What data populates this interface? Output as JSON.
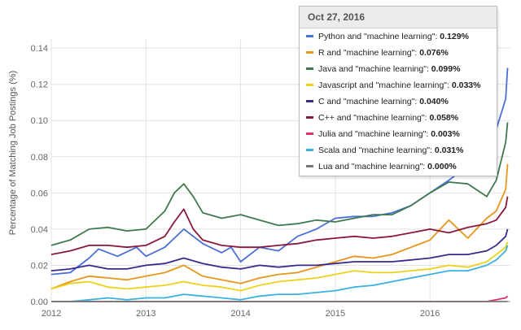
{
  "tooltip": {
    "date": "Oct 27, 2016",
    "rows": [
      {
        "label": "Python and \"machine learning\":",
        "value": "0.129%",
        "color": "#4a6fd8"
      },
      {
        "label": "R and \"machine learning\":",
        "value": "0.076%",
        "color": "#e8961c"
      },
      {
        "label": "Java and \"machine learning\":",
        "value": "0.099%",
        "color": "#3f7a4e"
      },
      {
        "label": "Javascript and \"machine learning\":",
        "value": "0.033%",
        "color": "#ecd21a"
      },
      {
        "label": "C and \"machine learning\":",
        "value": "0.040%",
        "color": "#3a2a8a"
      },
      {
        "label": "C++ and \"machine learning\":",
        "value": "0.058%",
        "color": "#8a1838"
      },
      {
        "label": "Julia and \"machine learning\":",
        "value": "0.003%",
        "color": "#e0306a"
      },
      {
        "label": "Scala and \"machine learning\":",
        "value": "0.031%",
        "color": "#3bb1e0"
      },
      {
        "label": "Lua and \"machine learning\":",
        "value": "0.000%",
        "color": "#777777"
      }
    ]
  },
  "chart_data": {
    "type": "line",
    "title": "",
    "xlabel": "",
    "ylabel": "Percentage of Matching Job Postings (%)",
    "x_ticks": [
      "2012",
      "2013",
      "2014",
      "2015",
      "2016"
    ],
    "y_ticks": [
      "0.00",
      "0.02",
      "0.04",
      "0.06",
      "0.08",
      "0.10",
      "0.12",
      "0.14"
    ],
    "ylim": [
      0,
      0.145
    ],
    "xlim": [
      2012.0,
      2016.85
    ],
    "grid": true,
    "series": [
      {
        "name": "Python and \"machine learning\"",
        "color": "#4a6fd8",
        "x": [
          2012.0,
          2012.2,
          2012.4,
          2012.5,
          2012.7,
          2012.9,
          2013.0,
          2013.2,
          2013.4,
          2013.6,
          2013.8,
          2013.9,
          2014.0,
          2014.2,
          2014.4,
          2014.6,
          2014.8,
          2015.0,
          2015.2,
          2015.4,
          2015.6,
          2015.8,
          2016.0,
          2016.2,
          2016.3,
          2016.5,
          2016.6,
          2016.7,
          2016.8,
          2016.82
        ],
        "values": [
          0.015,
          0.016,
          0.024,
          0.029,
          0.025,
          0.03,
          0.025,
          0.03,
          0.04,
          0.032,
          0.027,
          0.03,
          0.022,
          0.03,
          0.028,
          0.036,
          0.04,
          0.046,
          0.047,
          0.047,
          0.049,
          0.053,
          0.06,
          0.067,
          0.071,
          0.075,
          0.088,
          0.095,
          0.112,
          0.129
        ]
      },
      {
        "name": "R and \"machine learning\"",
        "color": "#e8961c",
        "x": [
          2012.0,
          2012.2,
          2012.4,
          2012.6,
          2012.8,
          2013.0,
          2013.2,
          2013.4,
          2013.6,
          2013.8,
          2014.0,
          2014.2,
          2014.4,
          2014.6,
          2014.8,
          2015.0,
          2015.2,
          2015.4,
          2015.6,
          2015.8,
          2016.0,
          2016.2,
          2016.4,
          2016.6,
          2016.7,
          2016.8,
          2016.82
        ],
        "values": [
          0.007,
          0.011,
          0.014,
          0.013,
          0.012,
          0.014,
          0.016,
          0.02,
          0.014,
          0.012,
          0.01,
          0.013,
          0.015,
          0.016,
          0.019,
          0.022,
          0.025,
          0.024,
          0.026,
          0.03,
          0.034,
          0.045,
          0.035,
          0.046,
          0.05,
          0.062,
          0.076
        ]
      },
      {
        "name": "Java and \"machine learning\"",
        "color": "#3f7a4e",
        "x": [
          2012.0,
          2012.2,
          2012.4,
          2012.6,
          2012.8,
          2013.0,
          2013.2,
          2013.3,
          2013.4,
          2013.5,
          2013.6,
          2013.8,
          2014.0,
          2014.2,
          2014.4,
          2014.6,
          2014.8,
          2015.0,
          2015.2,
          2015.4,
          2015.6,
          2015.8,
          2016.0,
          2016.2,
          2016.4,
          2016.6,
          2016.7,
          2016.8,
          2016.82
        ],
        "values": [
          0.031,
          0.034,
          0.04,
          0.041,
          0.039,
          0.04,
          0.05,
          0.06,
          0.065,
          0.058,
          0.049,
          0.046,
          0.048,
          0.045,
          0.042,
          0.043,
          0.045,
          0.044,
          0.046,
          0.048,
          0.048,
          0.053,
          0.06,
          0.066,
          0.065,
          0.058,
          0.067,
          0.088,
          0.099
        ]
      },
      {
        "name": "Javascript and \"machine learning\"",
        "color": "#ecd21a",
        "x": [
          2012.0,
          2012.2,
          2012.4,
          2012.6,
          2012.8,
          2013.0,
          2013.2,
          2013.4,
          2013.6,
          2013.8,
          2014.0,
          2014.2,
          2014.4,
          2014.6,
          2014.8,
          2015.0,
          2015.2,
          2015.4,
          2015.6,
          2015.8,
          2016.0,
          2016.2,
          2016.4,
          2016.6,
          2016.7,
          2016.8,
          2016.82
        ],
        "values": [
          0.007,
          0.01,
          0.011,
          0.008,
          0.007,
          0.008,
          0.009,
          0.011,
          0.009,
          0.008,
          0.006,
          0.009,
          0.011,
          0.012,
          0.013,
          0.015,
          0.017,
          0.016,
          0.016,
          0.017,
          0.018,
          0.02,
          0.019,
          0.022,
          0.026,
          0.03,
          0.033
        ]
      },
      {
        "name": "C and \"machine learning\"",
        "color": "#3a2a8a",
        "x": [
          2012.0,
          2012.2,
          2012.4,
          2012.6,
          2012.8,
          2013.0,
          2013.2,
          2013.4,
          2013.6,
          2013.8,
          2014.0,
          2014.2,
          2014.4,
          2014.6,
          2014.8,
          2015.0,
          2015.2,
          2015.4,
          2015.6,
          2015.8,
          2016.0,
          2016.2,
          2016.4,
          2016.6,
          2016.7,
          2016.8,
          2016.82
        ],
        "values": [
          0.017,
          0.018,
          0.02,
          0.018,
          0.018,
          0.02,
          0.021,
          0.024,
          0.021,
          0.019,
          0.018,
          0.02,
          0.019,
          0.02,
          0.02,
          0.021,
          0.022,
          0.022,
          0.022,
          0.023,
          0.024,
          0.026,
          0.026,
          0.028,
          0.031,
          0.036,
          0.04
        ]
      },
      {
        "name": "C++ and \"machine learning\"",
        "color": "#8a1838",
        "x": [
          2012.0,
          2012.2,
          2012.4,
          2012.6,
          2012.8,
          2013.0,
          2013.2,
          2013.3,
          2013.4,
          2013.5,
          2013.6,
          2013.8,
          2014.0,
          2014.2,
          2014.4,
          2014.6,
          2014.8,
          2015.0,
          2015.2,
          2015.4,
          2015.6,
          2015.8,
          2016.0,
          2016.2,
          2016.4,
          2016.6,
          2016.7,
          2016.8,
          2016.82
        ],
        "values": [
          0.026,
          0.028,
          0.031,
          0.031,
          0.03,
          0.031,
          0.036,
          0.044,
          0.051,
          0.04,
          0.034,
          0.031,
          0.03,
          0.03,
          0.031,
          0.032,
          0.034,
          0.035,
          0.036,
          0.035,
          0.036,
          0.038,
          0.04,
          0.038,
          0.041,
          0.043,
          0.045,
          0.052,
          0.058
        ]
      },
      {
        "name": "Julia and \"machine learning\"",
        "color": "#e0306a",
        "x": [
          2012.0,
          2013.0,
          2014.0,
          2015.0,
          2016.0,
          2016.6,
          2016.7,
          2016.8,
          2016.82
        ],
        "values": [
          0.0,
          0.0,
          0.0,
          0.0,
          0.0,
          0.0,
          0.001,
          0.002,
          0.003
        ]
      },
      {
        "name": "Scala and \"machine learning\"",
        "color": "#3bb1e0",
        "x": [
          2012.0,
          2012.2,
          2012.4,
          2012.6,
          2012.8,
          2013.0,
          2013.2,
          2013.4,
          2013.6,
          2013.8,
          2014.0,
          2014.2,
          2014.4,
          2014.6,
          2014.8,
          2015.0,
          2015.2,
          2015.4,
          2015.6,
          2015.8,
          2016.0,
          2016.2,
          2016.4,
          2016.6,
          2016.7,
          2016.8,
          2016.82
        ],
        "values": [
          0.0,
          0.0,
          0.001,
          0.002,
          0.001,
          0.002,
          0.002,
          0.004,
          0.003,
          0.002,
          0.001,
          0.003,
          0.004,
          0.004,
          0.005,
          0.006,
          0.008,
          0.009,
          0.011,
          0.013,
          0.015,
          0.017,
          0.017,
          0.02,
          0.023,
          0.028,
          0.031
        ]
      },
      {
        "name": "Lua and \"machine learning\"",
        "color": "#777777",
        "x": [
          2012.0,
          2013.0,
          2014.0,
          2015.0,
          2016.0,
          2016.82
        ],
        "values": [
          0.0,
          0.0,
          0.0,
          0.0,
          0.0,
          0.0
        ]
      }
    ]
  }
}
